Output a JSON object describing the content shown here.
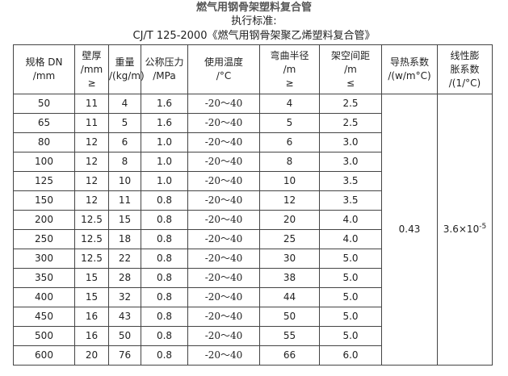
{
  "title": "燃气用钢骨架塑料复合管",
  "standard_label": "执行标准:",
  "standard": "CJ/T 125-2000《燃气用钢骨架聚乙烯塑料复合管》",
  "headers": [
    [
      "规格 DN",
      "/mm"
    ],
    [
      "壁厚",
      "/mm",
      "≥"
    ],
    [
      "重量",
      "/(kg/m)"
    ],
    [
      "公称压力",
      "/MPa"
    ],
    [
      "使用温度",
      "/°C"
    ],
    [
      "弯曲半径",
      "/m",
      "≥"
    ],
    [
      "架空间距",
      "/m",
      "≤"
    ],
    [
      "导热系数",
      "/(w/m°C)"
    ],
    [
      "线性膨",
      "胀系数",
      "/(1/°C)"
    ]
  ],
  "rows": [
    [
      "50",
      "11",
      "4",
      "1.6",
      "-20～40",
      "4",
      "2.5"
    ],
    [
      "65",
      "11",
      "5",
      "1.6",
      "-20～40",
      "5",
      "2.5"
    ],
    [
      "80",
      "12",
      "6",
      "1.0",
      "-20～40",
      "6",
      "3.0"
    ],
    [
      "100",
      "12",
      "8",
      "1.0",
      "-20～40",
      "8",
      "3.0"
    ],
    [
      "125",
      "12",
      "10",
      "1.0",
      "-20～40",
      "10",
      "3.5"
    ],
    [
      "150",
      "12",
      "11",
      "0.8",
      "-20～40",
      "12",
      "3.5"
    ],
    [
      "200",
      "12.5",
      "15",
      "0.8",
      "-20～40",
      "20",
      "4.0"
    ],
    [
      "250",
      "12.5",
      "18",
      "0.8",
      "-20～40",
      "25",
      "4.0"
    ],
    [
      "300",
      "12.5",
      "22",
      "0.8",
      "-20～40",
      "30",
      "5.0"
    ],
    [
      "350",
      "15",
      "28",
      "0.8",
      "-20～40",
      "38",
      "5.0"
    ],
    [
      "400",
      "15",
      "32",
      "0.8",
      "-20～40",
      "44",
      "5.0"
    ],
    [
      "450",
      "16",
      "43",
      "0.8",
      "-20～40",
      "50",
      "5.0"
    ],
    [
      "500",
      "16",
      "50",
      "0.8",
      "-20～40",
      "55",
      "5.0"
    ],
    [
      "600",
      "20",
      "76",
      "0.8",
      "-20～40",
      "66",
      "6.0"
    ]
  ],
  "thermal_conductivity": "0.43",
  "expansion_base": "3.6×10",
  "expansion_exp": "-5"
}
